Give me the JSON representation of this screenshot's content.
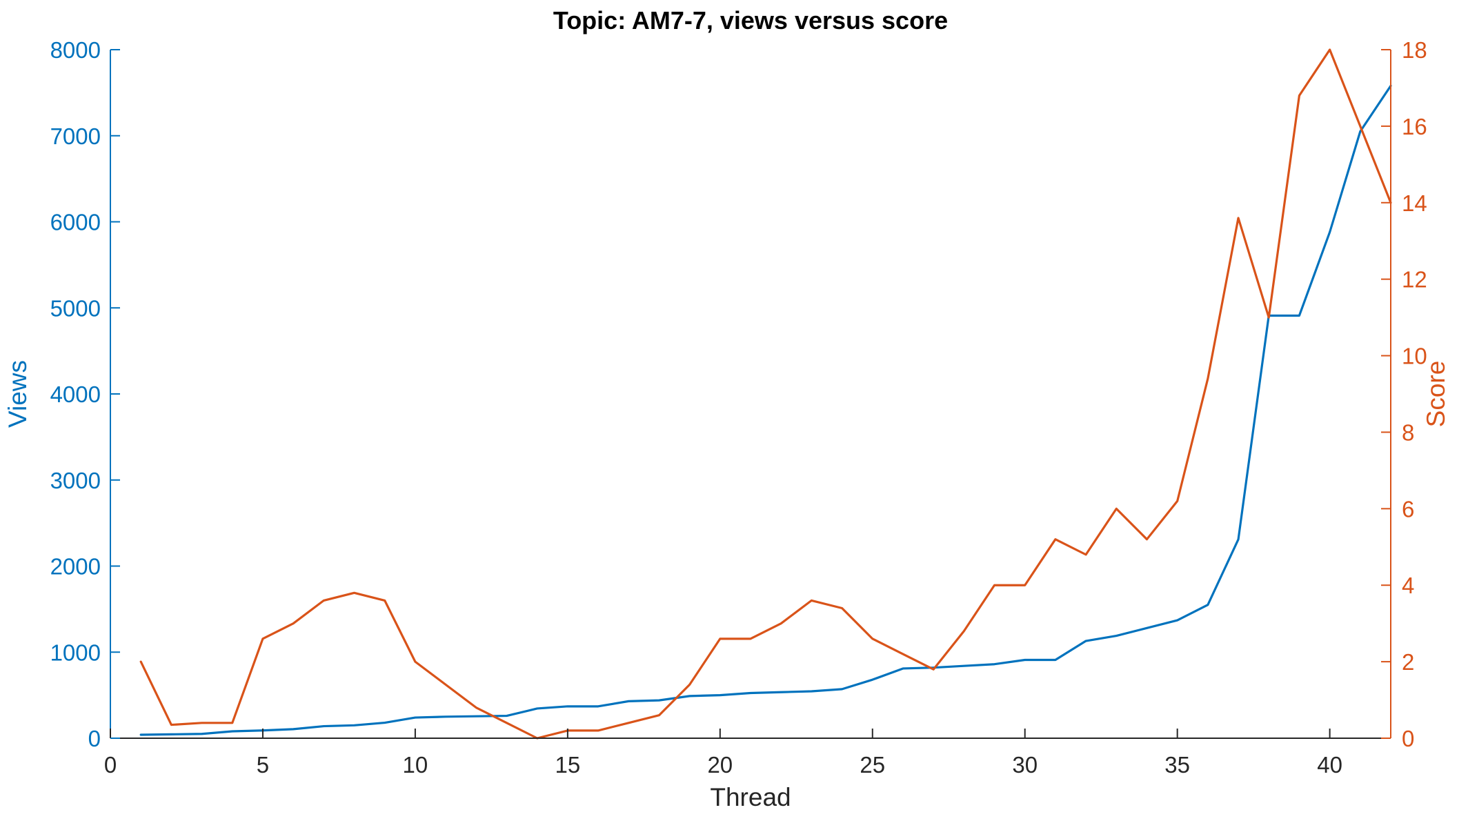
{
  "chart_data": {
    "type": "line",
    "title": "Topic: AM7-7, views versus score",
    "xlabel": "Thread",
    "ylabel_left": "Views",
    "ylabel_right": "Score",
    "xlim": [
      0,
      42
    ],
    "ylim_left": [
      0,
      8000
    ],
    "ylim_right": [
      0,
      18
    ],
    "x_ticks": [
      0,
      5,
      10,
      15,
      20,
      25,
      30,
      35,
      40
    ],
    "y_ticks_left": [
      0,
      1000,
      2000,
      3000,
      4000,
      5000,
      6000,
      7000,
      8000
    ],
    "y_ticks_right": [
      0,
      2,
      4,
      6,
      8,
      10,
      12,
      14,
      16,
      18
    ],
    "grid": false,
    "legend": "none",
    "colors": {
      "views": "#0072BD",
      "score": "#D95319",
      "axis": "#262626"
    },
    "x": [
      1,
      2,
      3,
      4,
      5,
      6,
      7,
      8,
      9,
      10,
      11,
      12,
      13,
      14,
      15,
      16,
      17,
      18,
      19,
      20,
      21,
      22,
      23,
      24,
      25,
      26,
      27,
      28,
      29,
      30,
      31,
      32,
      33,
      34,
      35,
      36,
      37,
      38,
      39,
      40,
      41,
      42
    ],
    "series": [
      {
        "axis": "left",
        "values": [
          40,
          45,
          50,
          80,
          90,
          105,
          140,
          150,
          180,
          240,
          250,
          255,
          260,
          345,
          370,
          370,
          430,
          440,
          490,
          500,
          525,
          535,
          545,
          570,
          680,
          810,
          820,
          840,
          860,
          910,
          910,
          1130,
          1190,
          1280,
          1370,
          1550,
          2310,
          4910,
          4910,
          5880,
          7050,
          7580
        ]
      },
      {
        "axis": "right",
        "values": [
          2.0,
          0.35,
          0.4,
          0.4,
          2.6,
          3.0,
          3.6,
          3.8,
          3.6,
          2.0,
          1.4,
          0.8,
          0.4,
          0.0,
          0.2,
          0.2,
          0.4,
          0.6,
          1.4,
          2.6,
          2.6,
          3.0,
          3.6,
          3.4,
          2.6,
          2.2,
          1.8,
          2.8,
          4.0,
          4.0,
          5.2,
          4.8,
          6.0,
          5.2,
          6.2,
          9.4,
          13.6,
          11.0,
          16.8,
          18.0,
          16.0,
          14.0
        ]
      }
    ]
  }
}
